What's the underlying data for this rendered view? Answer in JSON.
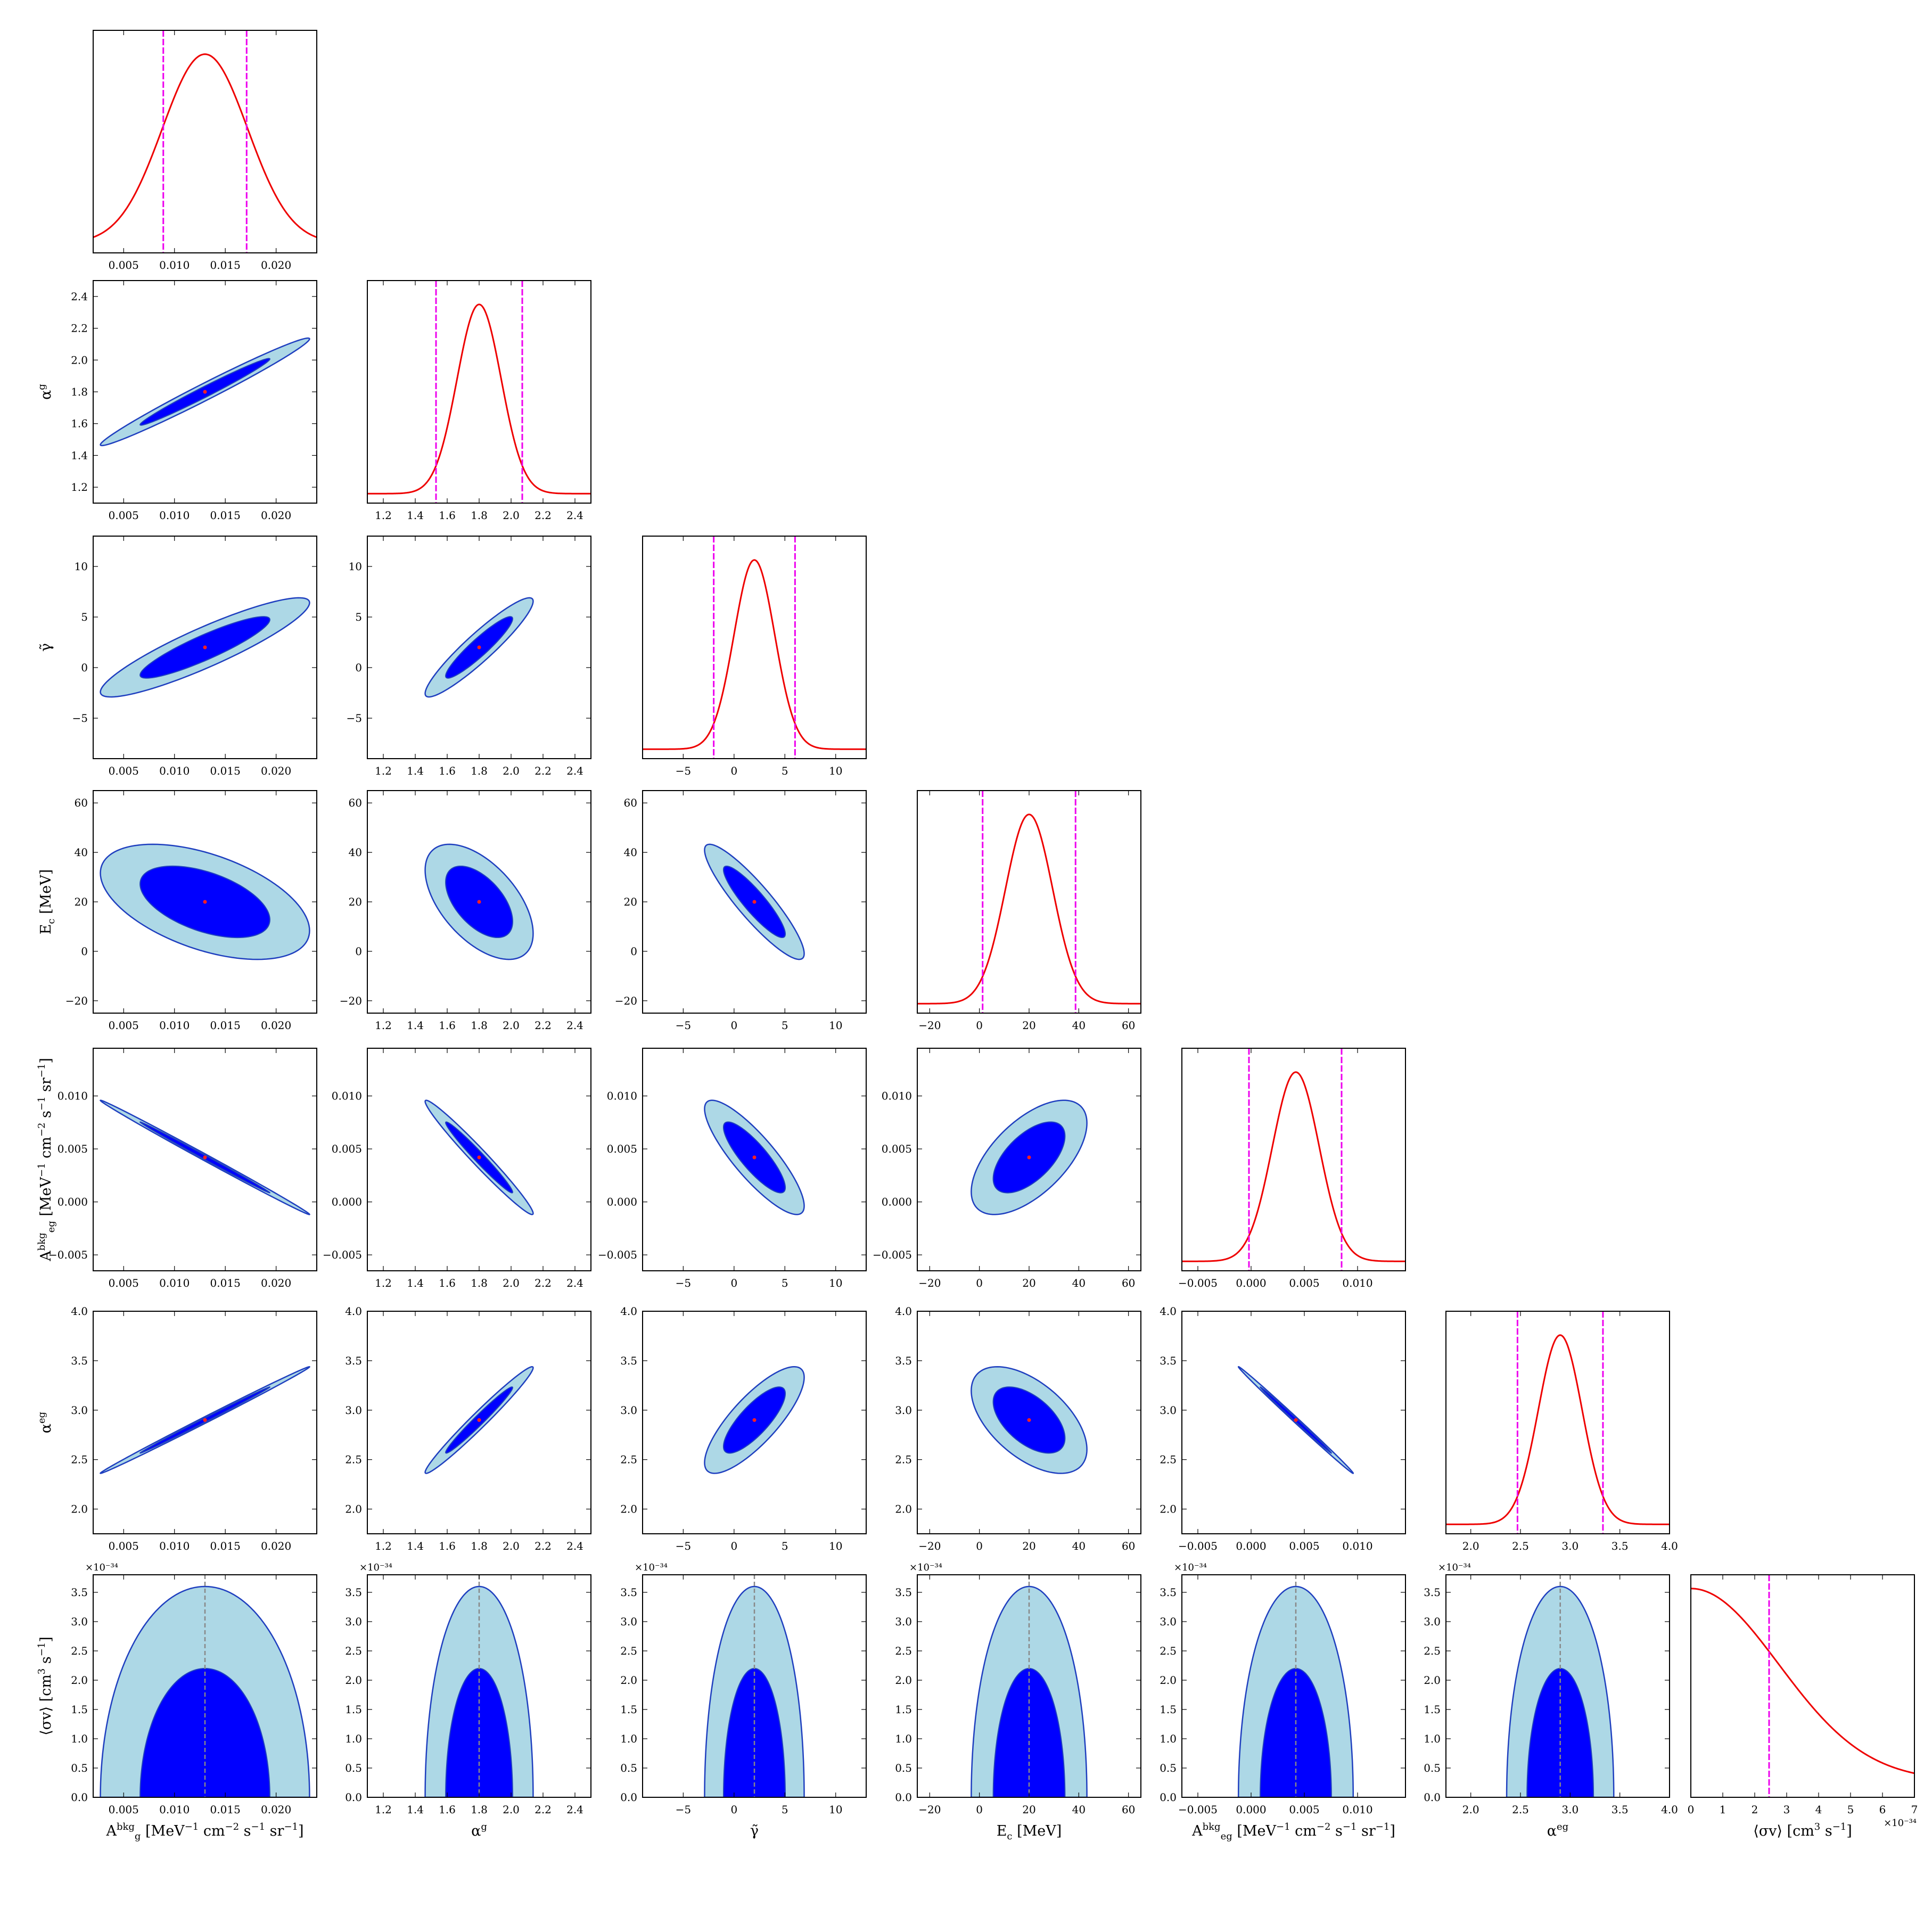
{
  "chart_data": {
    "type": "corner",
    "parameters": [
      {
        "key": "Ag",
        "label": "A_g^bkg [MeV^-1 cm^-2 s^-1 sr^-1]",
        "label_parts": [
          [
            "A",
            ""
          ],
          [
            "bkg",
            "sup"
          ],
          [
            "g",
            "sub"
          ],
          [
            " [MeV",
            ""
          ],
          [
            "−1",
            "sup"
          ],
          [
            " cm",
            ""
          ],
          [
            "−2",
            "sup"
          ],
          [
            " s",
            ""
          ],
          [
            "−1",
            "sup"
          ],
          [
            " sr",
            ""
          ],
          [
            "−1",
            "sup"
          ],
          [
            "]",
            ""
          ]
        ],
        "range": [
          0.002,
          0.024
        ],
        "ticks": [
          0.005,
          0.01,
          0.015,
          0.02
        ],
        "tick_labels": [
          "0.005",
          "0.010",
          "0.015",
          "0.020"
        ],
        "mean": 0.013,
        "sigma": 0.0042,
        "marginal_lines": [
          0.0089,
          0.0171
        ]
      },
      {
        "key": "alpha_g",
        "label": "α^g",
        "label_parts": [
          [
            "α",
            ""
          ],
          [
            "g",
            "sup"
          ]
        ],
        "range": [
          1.1,
          2.5
        ],
        "ticks": [
          1.2,
          1.4,
          1.6,
          1.8,
          2.0,
          2.2,
          2.4
        ],
        "tick_labels": [
          "1.2",
          "1.4",
          "1.6",
          "1.8",
          "2.0",
          "2.2",
          "2.4"
        ],
        "mean": 1.8,
        "sigma": 0.138,
        "marginal_lines": [
          1.53,
          2.07
        ]
      },
      {
        "key": "gamma",
        "label": "γ̃",
        "label_parts": [
          [
            "γ̃",
            ""
          ]
        ],
        "range": [
          -9.0,
          13.0
        ],
        "ticks": [
          -5,
          0,
          5,
          10
        ],
        "tick_labels": [
          "−5",
          "0",
          "5",
          "10"
        ],
        "mean": 2.0,
        "sigma": 2.0,
        "marginal_lines": [
          -2.0,
          6.0
        ]
      },
      {
        "key": "Ec",
        "label": "E_c [MeV]",
        "label_parts": [
          [
            "E",
            ""
          ],
          [
            "c",
            "sub"
          ],
          [
            " [MeV]",
            ""
          ]
        ],
        "range": [
          -25,
          65
        ],
        "ticks": [
          -20,
          0,
          20,
          40,
          60
        ],
        "tick_labels": [
          "−20",
          "0",
          "20",
          "40",
          "60"
        ],
        "mean": 20,
        "sigma": 9.5,
        "marginal_lines": [
          1.3,
          38.7
        ]
      },
      {
        "key": "Aeg",
        "label": "A_eg^bkg [MeV^-1 cm^-2 s^-1 sr^-1]",
        "label_parts": [
          [
            "A",
            ""
          ],
          [
            "bkg",
            "sup"
          ],
          [
            "eg",
            "sub"
          ],
          [
            " [MeV",
            ""
          ],
          [
            "−1",
            "sup"
          ],
          [
            " cm",
            ""
          ],
          [
            "−2",
            "sup"
          ],
          [
            " s",
            ""
          ],
          [
            "−1",
            "sup"
          ],
          [
            " sr",
            ""
          ],
          [
            "−1",
            "sup"
          ],
          [
            "]",
            ""
          ]
        ],
        "range": [
          -0.0065,
          0.0145
        ],
        "ticks": [
          -0.005,
          0.0,
          0.005,
          0.01
        ],
        "tick_labels": [
          "−0.005",
          "0.000",
          "0.005",
          "0.010"
        ],
        "mean": 0.0042,
        "sigma": 0.0022,
        "marginal_lines": [
          -0.0002,
          0.0085
        ]
      },
      {
        "key": "alpha_eg",
        "label": "α^eg",
        "label_parts": [
          [
            "α",
            ""
          ],
          [
            "eg",
            "sup"
          ]
        ],
        "range": [
          1.75,
          4.0
        ],
        "ticks": [
          2.0,
          2.5,
          3.0,
          3.5,
          4.0
        ],
        "tick_labels": [
          "2.0",
          "2.5",
          "3.0",
          "3.5",
          "4.0"
        ],
        "mean": 2.9,
        "sigma": 0.22,
        "marginal_lines": [
          2.47,
          3.33
        ]
      },
      {
        "key": "sigmav",
        "label": "⟨σv⟩ [cm^3 s^-1]",
        "label_parts": [
          [
            "⟨σv⟩ [cm",
            ""
          ],
          [
            "3",
            "sup"
          ],
          [
            " s",
            ""
          ],
          [
            "−1",
            "sup"
          ],
          [
            "]",
            ""
          ]
        ],
        "range": [
          0,
          7
        ],
        "ticks": [
          0,
          1,
          2,
          3,
          4,
          5,
          6,
          7
        ],
        "tick_labels": [
          "0",
          "1",
          "2",
          "3",
          "4",
          "5",
          "6",
          "7"
        ],
        "exponent_label": "×10⁻³⁴",
        "marginal_lines": [
          2.45
        ]
      }
    ],
    "sigmav_2d": {
      "range": [
        0,
        3.8
      ],
      "ticks": [
        0.0,
        0.5,
        1.0,
        1.5,
        2.0,
        2.5,
        3.0,
        3.5
      ],
      "tick_labels": [
        "0.0",
        "0.5",
        "1.0",
        "1.5",
        "2.0",
        "2.5",
        "3.0",
        "3.5"
      ],
      "exponent_label": "×10⁻³⁴",
      "contour_68_top": 2.2,
      "contour_95_top": 3.6,
      "contour_68_halfwidth_sigma": 1.52,
      "contour_95_halfwidth_sigma": 2.45
    },
    "correlations": [
      {
        "pair": [
          "Ag",
          "alpha_g"
        ],
        "rho": 0.985
      },
      {
        "pair": [
          "Ag",
          "gamma"
        ],
        "rho": 0.9
      },
      {
        "pair": [
          "alpha_g",
          "gamma"
        ],
        "rho": 0.93
      },
      {
        "pair": [
          "Ag",
          "Ec"
        ],
        "rho": -0.5
      },
      {
        "pair": [
          "alpha_g",
          "Ec"
        ],
        "rho": -0.55
      },
      {
        "pair": [
          "gamma",
          "Ec"
        ],
        "rho": -0.9
      },
      {
        "pair": [
          "Ag",
          "Aeg"
        ],
        "rho": -0.998
      },
      {
        "pair": [
          "alpha_g",
          "Aeg"
        ],
        "rho": -0.98
      },
      {
        "pair": [
          "gamma",
          "Aeg"
        ],
        "rho": -0.85
      },
      {
        "pair": [
          "Ec",
          "Aeg"
        ],
        "rho": 0.6
      },
      {
        "pair": [
          "Ag",
          "alpha_eg"
        ],
        "rho": 0.998
      },
      {
        "pair": [
          "alpha_g",
          "alpha_eg"
        ],
        "rho": 0.98
      },
      {
        "pair": [
          "gamma",
          "alpha_eg"
        ],
        "rho": 0.8
      },
      {
        "pair": [
          "Ec",
          "alpha_eg"
        ],
        "rho": -0.55
      },
      {
        "pair": [
          "Aeg",
          "alpha_eg"
        ],
        "rho": -0.998
      }
    ],
    "contour_levels_sigma": [
      1.52,
      2.45
    ],
    "colors": {
      "contour_68": "#0000ff",
      "contour_95": "#add8e6",
      "contour_edge": "#1f3fbf",
      "marginal_curve": "#ee0000",
      "interval_lines": "#ee00ee",
      "best_fit": "#ff2020",
      "mean_line": "#888888"
    }
  }
}
